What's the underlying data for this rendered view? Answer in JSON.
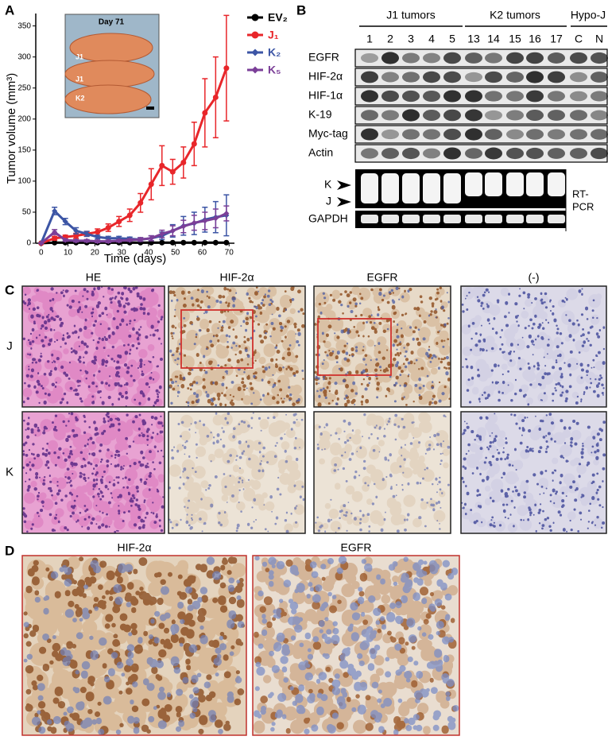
{
  "chart_data": {
    "type": "line",
    "xlabel": "Time (days)",
    "ylabel": "Tumor volume (mm³)",
    "annotations": [
      "Day 71",
      "J1",
      "J1",
      "K2"
    ],
    "x": [
      0,
      5,
      9,
      13,
      17,
      21,
      25,
      29,
      33,
      37,
      41,
      45,
      49,
      53,
      57,
      61,
      65,
      69
    ],
    "xlim": [
      -2,
      72
    ],
    "xticks": [
      0,
      10,
      20,
      30,
      40,
      50,
      60,
      70
    ],
    "ylim": [
      0,
      370
    ],
    "yticks": [
      0,
      50,
      100,
      150,
      200,
      250,
      300,
      350
    ],
    "series": [
      {
        "name": "EV₂",
        "color": "#000000",
        "marker": "circle",
        "values": [
          0,
          1,
          1,
          1,
          1,
          1,
          1,
          1,
          1,
          1,
          1,
          1,
          1,
          1,
          1,
          1,
          1,
          1
        ]
      },
      {
        "name": "J₁",
        "color": "#e8262a",
        "marker": "circle",
        "values": [
          0,
          8,
          10,
          12,
          15,
          18,
          25,
          35,
          45,
          65,
          95,
          125,
          115,
          130,
          160,
          210,
          235,
          282
        ],
        "errors": [
          0,
          3,
          3,
          4,
          4,
          5,
          6,
          8,
          10,
          15,
          25,
          32,
          20,
          25,
          35,
          55,
          65,
          85
        ]
      },
      {
        "name": "K₂",
        "color": "#3c55a5",
        "marker": "diamond",
        "values": [
          0,
          52,
          35,
          20,
          15,
          10,
          8,
          8,
          7,
          6,
          8,
          12,
          20,
          28,
          32,
          38,
          42,
          45
        ],
        "errors": [
          0,
          6,
          5,
          5,
          4,
          3,
          3,
          3,
          3,
          3,
          4,
          6,
          10,
          15,
          18,
          20,
          25,
          33
        ]
      },
      {
        "name": "K₅",
        "color": "#7b3f98",
        "marker": "diamond",
        "values": [
          0,
          18,
          5,
          4,
          4,
          3,
          3,
          4,
          5,
          6,
          8,
          15,
          20,
          27,
          33,
          36,
          40,
          48
        ],
        "errors": [
          0,
          4,
          2,
          2,
          2,
          2,
          2,
          2,
          2,
          3,
          4,
          6,
          8,
          10,
          12,
          14,
          15,
          12
        ]
      }
    ]
  },
  "panel_labels": [
    "A",
    "B",
    "C",
    "D"
  ],
  "western_blot": {
    "groups": [
      "J1 tumors",
      "K2 tumors",
      "Hypo-J"
    ],
    "lanes": [
      "1",
      "2",
      "3",
      "4",
      "5",
      "13",
      "14",
      "15",
      "16",
      "17",
      "C",
      "N"
    ],
    "rows": [
      "EGFR",
      "HIF-2α",
      "HIF-1α",
      "K-19",
      "Myc-tag",
      "Actin"
    ],
    "rt_pcr": {
      "bands": [
        "K",
        "J"
      ],
      "label": [
        "RT-",
        "PCR"
      ],
      "control": "GAPDH"
    }
  },
  "histology": {
    "columns": [
      "HE",
      "HIF-2α",
      "EGFR",
      "(-)"
    ],
    "rows": [
      "J",
      "K"
    ]
  },
  "magnified": {
    "columns": [
      "HIF-2α",
      "EGFR"
    ]
  }
}
